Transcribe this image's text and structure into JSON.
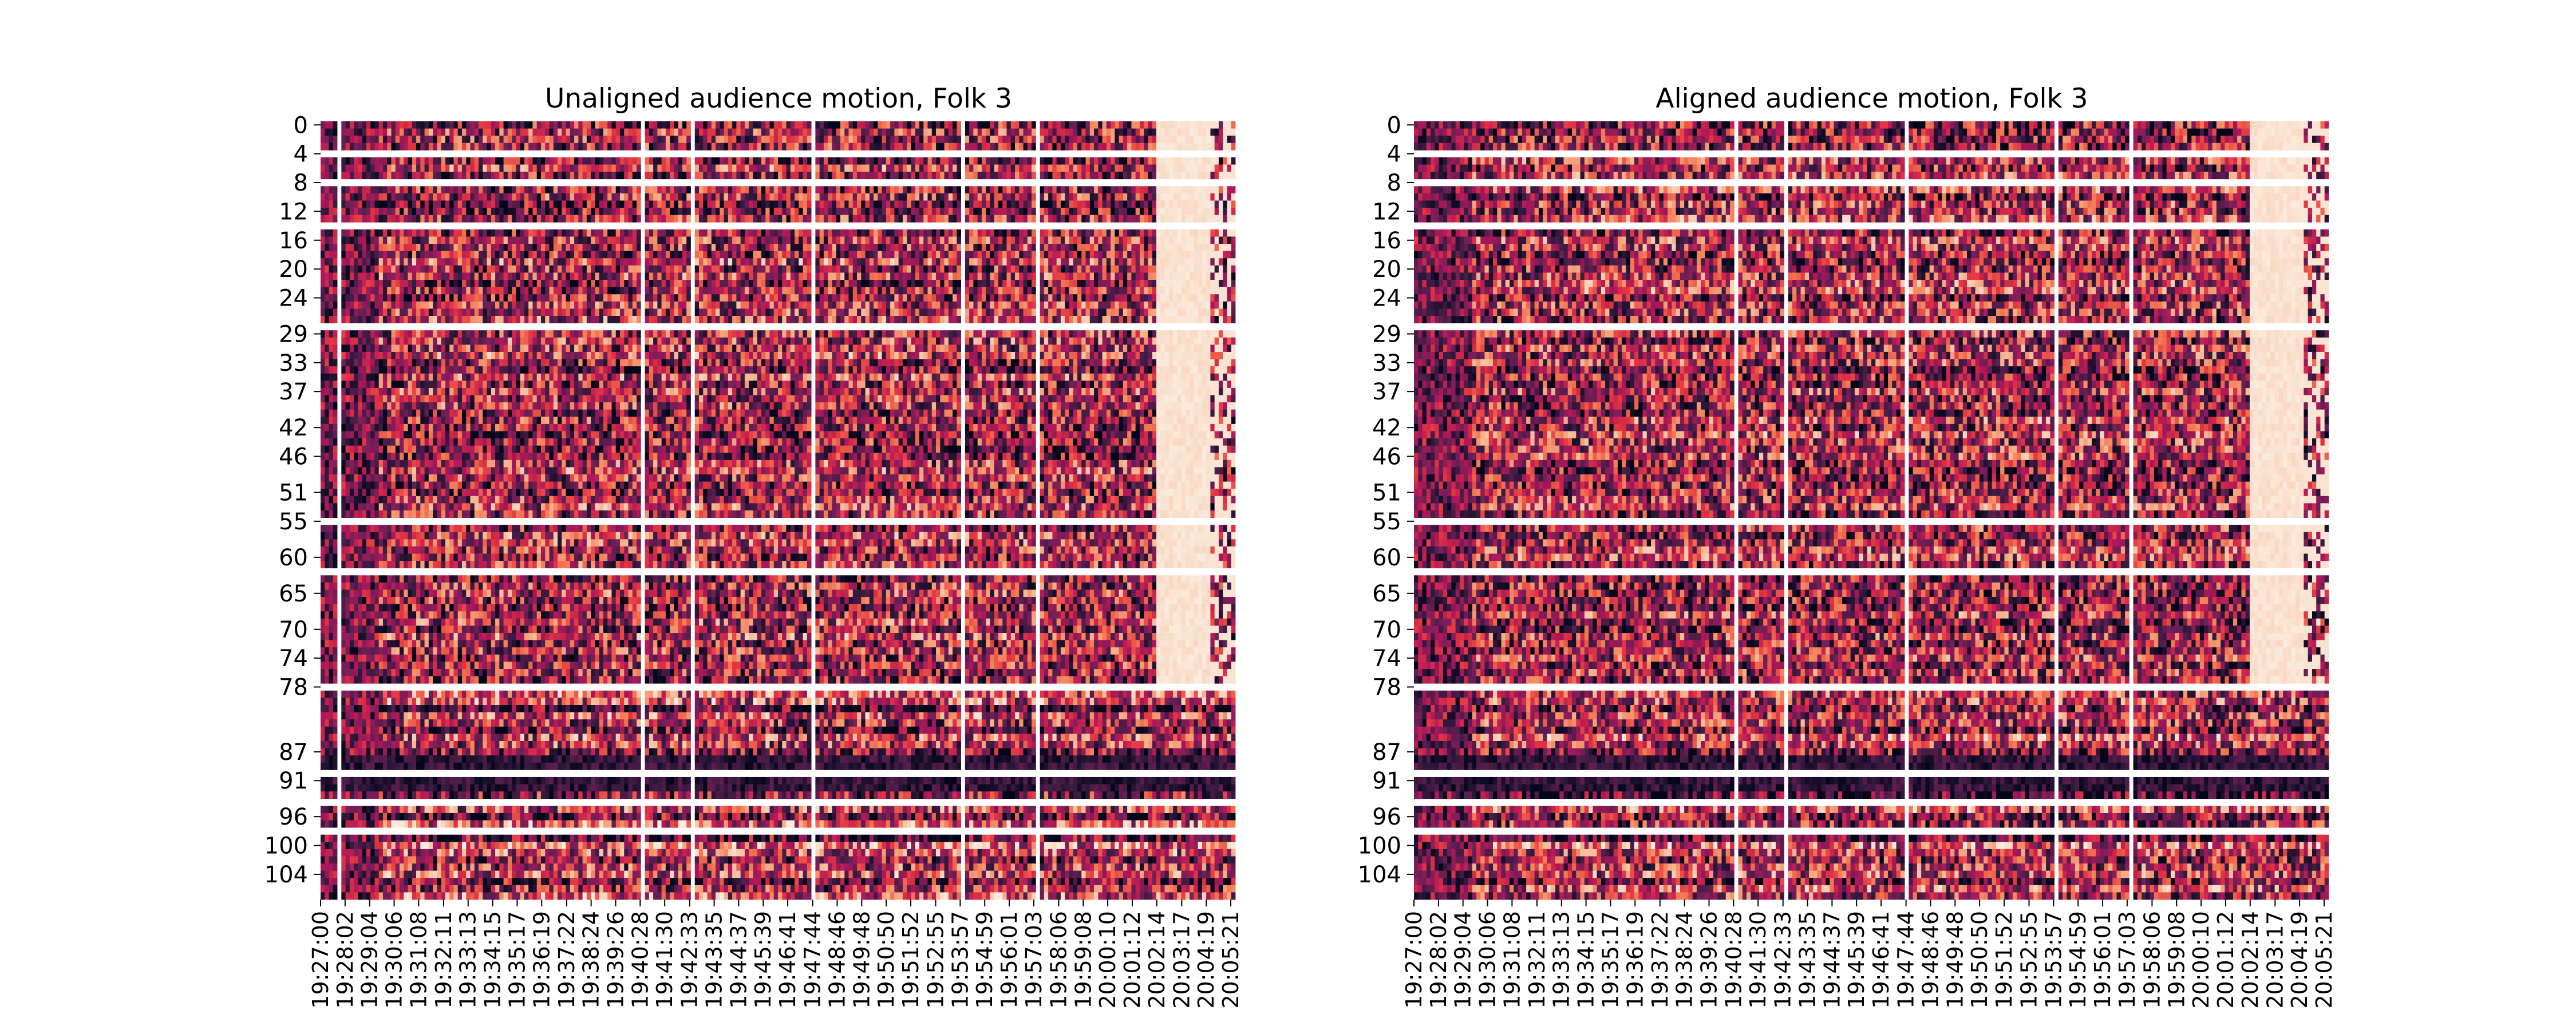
{
  "figure": {
    "background": "#ffffff",
    "colormap": "rocket",
    "colormap_stops": [
      "#03051a",
      "#35193e",
      "#701f57",
      "#ad1759",
      "#e13342",
      "#f37651",
      "#f6b48f",
      "#faebdd"
    ],
    "gap_color": "#ffffff"
  },
  "chart_data": [
    {
      "type": "heatmap",
      "title": "Unaligned audience motion,  Folk 3",
      "xlabel": "",
      "ylabel": "",
      "n_rows": 108,
      "y_tick_labels": [
        "0",
        "4",
        "8",
        "12",
        "16",
        "20",
        "24",
        "29",
        "33",
        "37",
        "42",
        "46",
        "51",
        "55",
        "60",
        "65",
        "70",
        "74",
        "78",
        "87",
        "91",
        "96",
        "100",
        "104"
      ],
      "x_tick_labels": [
        "19:27:00",
        "19:28:02",
        "19:29:04",
        "19:30:06",
        "19:31:08",
        "19:32:11",
        "19:33:13",
        "19:34:15",
        "19:35:17",
        "19:36:19",
        "19:37:22",
        "19:38:24",
        "19:39:26",
        "19:40:28",
        "19:41:30",
        "19:42:33",
        "19:43:35",
        "19:44:37",
        "19:45:39",
        "19:46:41",
        "19:47:44",
        "19:48:46",
        "19:49:48",
        "19:50:50",
        "19:51:52",
        "19:52:55",
        "19:53:57",
        "19:54:59",
        "19:56:01",
        "19:57:03",
        "19:58:06",
        "19:59:08",
        "20:00:10",
        "20:01:12",
        "20:02:14",
        "20:03:17",
        "20:04:19",
        "20:05:21"
      ],
      "colorbar": false,
      "blank_rows": [
        4,
        8,
        14,
        28,
        55,
        62,
        78,
        90,
        94,
        98
      ],
      "blank_columns": [
        "19:27:45",
        "19:40:28",
        "19:42:33",
        "19:47:44",
        "19:53:57",
        "19:57:03"
      ],
      "low_motion_band": [
        "20:02:14",
        "20:04:19"
      ]
    },
    {
      "type": "heatmap",
      "title": "Aligned audience motion, Folk 3",
      "xlabel": "",
      "ylabel": "",
      "n_rows": 108,
      "y_tick_labels": [
        "0",
        "4",
        "8",
        "12",
        "16",
        "20",
        "24",
        "29",
        "33",
        "37",
        "42",
        "46",
        "51",
        "55",
        "60",
        "65",
        "70",
        "74",
        "78",
        "87",
        "91",
        "96",
        "100",
        "104"
      ],
      "x_tick_labels": [
        "19:27:00",
        "19:28:02",
        "19:29:04",
        "19:30:06",
        "19:31:08",
        "19:32:11",
        "19:33:13",
        "19:34:15",
        "19:35:17",
        "19:36:19",
        "19:37:22",
        "19:38:24",
        "19:39:26",
        "19:40:28",
        "19:41:30",
        "19:42:33",
        "19:43:35",
        "19:44:37",
        "19:45:39",
        "19:46:41",
        "19:47:44",
        "19:48:46",
        "19:49:48",
        "19:50:50",
        "19:51:52",
        "19:52:55",
        "19:53:57",
        "19:54:59",
        "19:56:01",
        "19:57:03",
        "19:58:06",
        "19:59:08",
        "20:00:10",
        "20:01:12",
        "20:02:14",
        "20:03:17",
        "20:04:19",
        "20:05:21"
      ],
      "colorbar": false,
      "blank_rows": [
        4,
        8,
        14,
        28,
        55,
        62,
        78,
        90,
        94,
        98
      ],
      "blank_columns": [
        "19:40:28",
        "19:42:33",
        "19:47:44",
        "19:53:57",
        "19:57:03"
      ],
      "low_motion_band": [
        "20:02:14",
        "20:04:19"
      ]
    }
  ]
}
